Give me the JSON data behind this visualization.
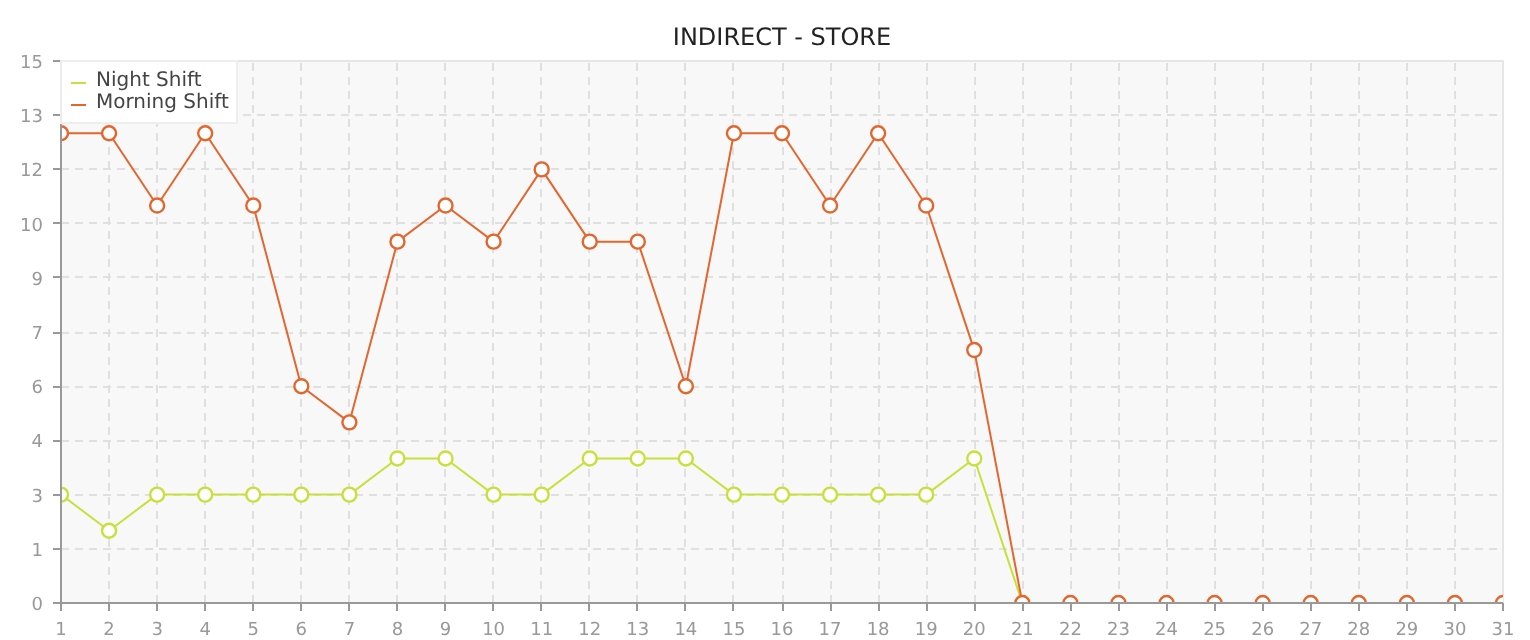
{
  "chart_data": {
    "type": "line",
    "title": "INDIRECT - STORE",
    "x": [
      1,
      2,
      3,
      4,
      5,
      6,
      7,
      8,
      9,
      10,
      11,
      12,
      13,
      14,
      15,
      16,
      17,
      18,
      19,
      20,
      21,
      22,
      23,
      24,
      25,
      26,
      27,
      28,
      29,
      30,
      31
    ],
    "series": [
      {
        "name": "Night Shift",
        "color": "#c8e03c",
        "values": [
          3,
          2,
          3,
          3,
          3,
          3,
          3,
          4,
          4,
          3,
          3,
          4,
          4,
          4,
          3,
          3,
          3,
          3,
          3,
          4,
          0,
          null,
          null,
          null,
          null,
          null,
          null,
          null,
          null,
          null,
          null
        ]
      },
      {
        "name": "Morning Shift",
        "color": "#e2662e",
        "values": [
          13,
          13,
          11,
          13,
          11,
          6,
          5,
          10,
          11,
          10,
          12,
          10,
          10,
          6,
          13,
          13,
          11,
          13,
          11,
          7,
          0,
          0,
          0,
          0,
          0,
          0,
          0,
          0,
          0,
          0,
          0
        ]
      }
    ],
    "xlim": [
      1,
      31
    ],
    "xticks": [
      1,
      2,
      3,
      4,
      5,
      6,
      7,
      8,
      9,
      10,
      11,
      12,
      13,
      14,
      15,
      16,
      17,
      18,
      19,
      20,
      21,
      22,
      23,
      24,
      25,
      26,
      27,
      28,
      29,
      30,
      31
    ],
    "ylim": [
      0,
      15
    ],
    "yticks": [
      0,
      {
        "value": 1.5,
        "label": "1"
      },
      3,
      {
        "value": 4.5,
        "label": "4"
      },
      6,
      {
        "value": 7.5,
        "label": "7"
      },
      9,
      {
        "value": 10.5,
        "label": "10"
      },
      12,
      {
        "value": 13.5,
        "label": "13"
      },
      15
    ],
    "grid": true,
    "legend": "top left",
    "marker": "circle",
    "line_style": "solid"
  }
}
